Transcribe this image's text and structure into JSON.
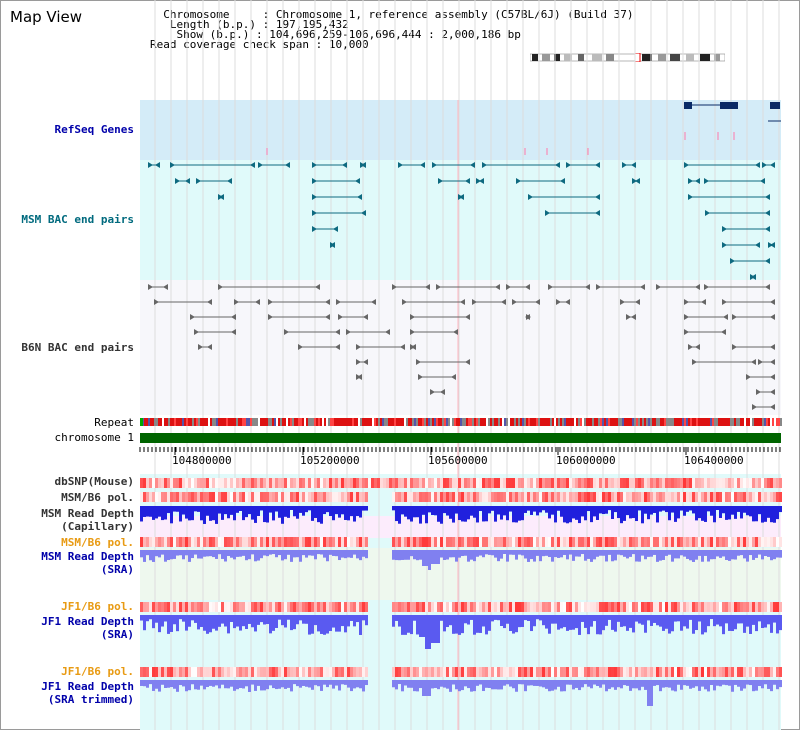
{
  "title": "Map View",
  "info": {
    "chromosome_label": "Chromosome",
    "chromosome_value": "Chromosome 1, reference assembly (C57BL/6J) (Build 37)",
    "length_label": "Length (b.p.)",
    "length_value": "197,195,432",
    "show_label": "Show (b.p.)",
    "show_value": "104,696,259-106,696,444 : 2,000,186 bp",
    "coverage_label": "Read coverage check span",
    "coverage_value": "10,000"
  },
  "tracks": {
    "refseq": "RefSeq Genes",
    "msm_bac": "MSM BAC end pairs",
    "b6n_bac": "B6N BAC end pairs",
    "repeat": "Repeat",
    "chromosome": "chromosome 1",
    "dbsnp": "dbSNP(Mouse)",
    "msm_b6_pol_1": "MSM/B6 pol.",
    "msm_depth_cap_1": "MSM Read Depth",
    "msm_depth_cap_2": "(Capillary)",
    "msm_b6_pol_2": "MSM/B6 pol.",
    "msm_depth_sra_1": "MSM Read Depth",
    "msm_depth_sra_2": "(SRA)",
    "jf1_b6_pol_1": "JF1/B6 pol.",
    "jf1_depth_sra_1": "JF1 Read Depth",
    "jf1_depth_sra_2": "(SRA)",
    "jf1_b6_pol_2": "JF1/B6 pol.",
    "jf1_depth_trim_1": "JF1 Read Depth",
    "jf1_depth_trim_2": "(SRA trimmed)"
  },
  "axis_ticks": [
    "104800000",
    "105200000",
    "105600000",
    "106000000",
    "106400000"
  ],
  "colors": {
    "refseq_bg": "#d4ecf8",
    "msm_bg": "#e0fafa",
    "b6n_bg": "#ffffff",
    "chrom_bar": "#006400",
    "highlight_line": "#ffb6c1"
  }
}
